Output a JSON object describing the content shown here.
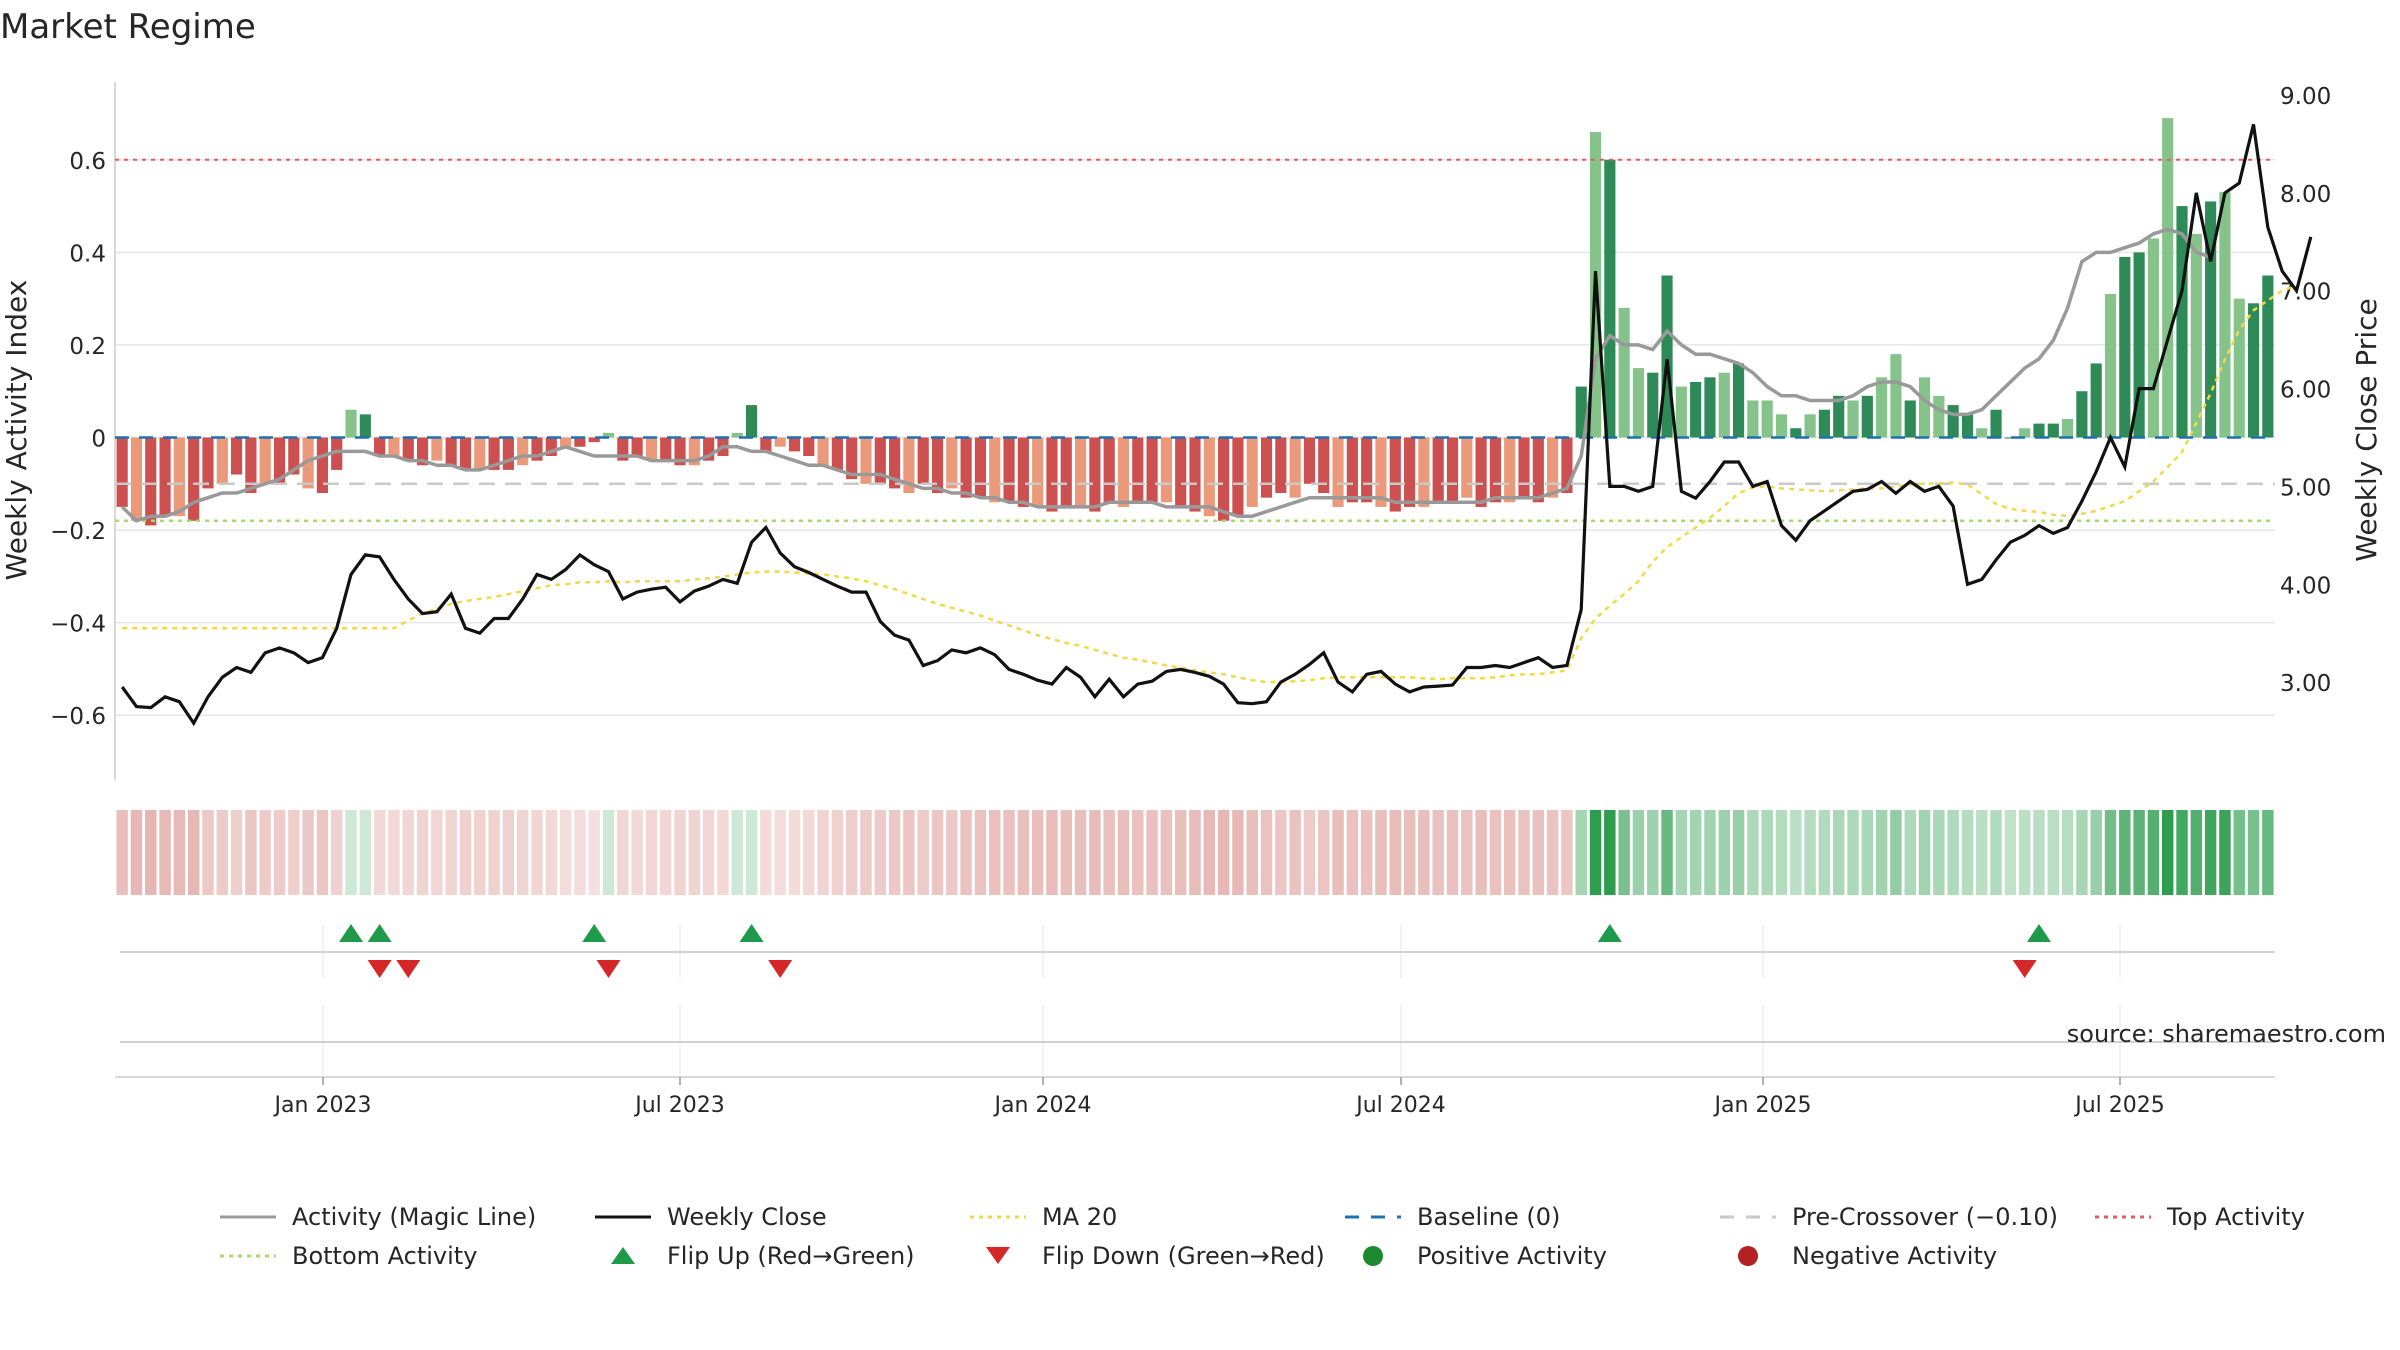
{
  "title": "Market Regime",
  "source_note": "source: sharemaestro.com",
  "colors": {
    "top_line": "#e05a6a",
    "bottom_line": "#a8dc6a",
    "baseline": "#1f6fb4",
    "precross": "#c9c9c9",
    "magic": "#999999",
    "close": "#111111",
    "ma20": "#f0d948",
    "pos_dark": "#2e8b57",
    "pos_light": "#86c38a",
    "neg_dark": "#cd5050",
    "neg_light": "#ea9a7a",
    "flip_up": "#1e9a4a",
    "flip_down": "#d62728",
    "pos_dot": "#1e8a2e",
    "neg_dot": "#b22222"
  },
  "chart_data": {
    "type": "bar",
    "title": "Market Regime",
    "x_ticks": [
      "Jan 2023",
      "Jul 2023",
      "Jan 2024",
      "Jul 2024",
      "Jan 2025",
      "Jul 2025"
    ],
    "y_left": {
      "label": "Weekly Activity Index",
      "ticks": [
        "−0.6",
        "−0.4",
        "−0.2",
        "0",
        "0.2",
        "0.4",
        "0.6"
      ],
      "range": [
        -0.74,
        0.74
      ]
    },
    "y_right": {
      "label": "Weekly Close Price",
      "ticks": [
        "3.00",
        "4.00",
        "5.00",
        "6.00",
        "7.00",
        "8.00",
        "9.00"
      ],
      "range": [
        2.0,
        9.0
      ]
    },
    "reference_lines": {
      "top_activity": 0.6,
      "bottom_activity": -0.18,
      "baseline": 0,
      "pre_crossover": -0.1
    },
    "series": [
      {
        "name": "Activity (Magic Line)",
        "values": [
          -0.15,
          -0.18,
          -0.17,
          -0.17,
          -0.16,
          -0.14,
          -0.13,
          -0.12,
          -0.12,
          -0.11,
          -0.1,
          -0.09,
          -0.07,
          -0.05,
          -0.04,
          -0.03,
          -0.03,
          -0.03,
          -0.04,
          -0.04,
          -0.05,
          -0.05,
          -0.06,
          -0.06,
          -0.07,
          -0.07,
          -0.06,
          -0.05,
          -0.04,
          -0.04,
          -0.03,
          -0.02,
          -0.03,
          -0.04,
          -0.04,
          -0.04,
          -0.04,
          -0.05,
          -0.05,
          -0.05,
          -0.05,
          -0.04,
          -0.02,
          -0.02,
          -0.03,
          -0.03,
          -0.04,
          -0.05,
          -0.06,
          -0.06,
          -0.07,
          -0.08,
          -0.08,
          -0.08,
          -0.09,
          -0.1,
          -0.11,
          -0.11,
          -0.12,
          -0.12,
          -0.13,
          -0.13,
          -0.14,
          -0.14,
          -0.15,
          -0.15,
          -0.15,
          -0.15,
          -0.15,
          -0.14,
          -0.14,
          -0.14,
          -0.14,
          -0.15,
          -0.15,
          -0.15,
          -0.15,
          -0.16,
          -0.17,
          -0.17,
          -0.16,
          -0.15,
          -0.14,
          -0.13,
          -0.13,
          -0.13,
          -0.13,
          -0.13,
          -0.13,
          -0.14,
          -0.14,
          -0.14,
          -0.14,
          -0.14,
          -0.14,
          -0.14,
          -0.13,
          -0.13,
          -0.13,
          -0.13,
          -0.12,
          -0.11,
          -0.04,
          0.17,
          0.22,
          0.2,
          0.2,
          0.19,
          0.23,
          0.2,
          0.18,
          0.18,
          0.17,
          0.16,
          0.14,
          0.11,
          0.09,
          0.09,
          0.08,
          0.08,
          0.08,
          0.09,
          0.11,
          0.12,
          0.12,
          0.11,
          0.08,
          0.06,
          0.05,
          0.05,
          0.06,
          0.09,
          0.12,
          0.15,
          0.17,
          0.21,
          0.28,
          0.38,
          0.4,
          0.4,
          0.41,
          0.42,
          0.44,
          0.45,
          0.44,
          0.4,
          0.39
        ]
      },
      {
        "name": "Weekly Close",
        "values": [
          2.95,
          2.75,
          2.74,
          2.85,
          2.8,
          2.58,
          2.85,
          3.05,
          3.15,
          3.1,
          3.3,
          3.35,
          3.3,
          3.2,
          3.25,
          3.55,
          4.1,
          4.3,
          4.28,
          4.05,
          3.85,
          3.7,
          3.72,
          3.9,
          3.55,
          3.5,
          3.65,
          3.65,
          3.85,
          4.1,
          4.05,
          4.15,
          4.3,
          4.2,
          4.13,
          3.85,
          3.92,
          3.95,
          3.97,
          3.82,
          3.93,
          3.98,
          4.05,
          4.01,
          4.43,
          4.58,
          4.32,
          4.18,
          4.12,
          4.05,
          3.98,
          3.92,
          3.92,
          3.62,
          3.48,
          3.43,
          3.17,
          3.22,
          3.33,
          3.3,
          3.35,
          3.28,
          3.13,
          3.08,
          3.02,
          2.98,
          3.15,
          3.05,
          2.85,
          3.03,
          2.85,
          2.98,
          3.01,
          3.11,
          3.13,
          3.1,
          3.06,
          2.98,
          2.79,
          2.78,
          2.8,
          3.0,
          3.08,
          3.18,
          3.3,
          3.0,
          2.9,
          3.08,
          3.11,
          2.98,
          2.9,
          2.95,
          2.96,
          2.97,
          3.15,
          3.15,
          3.17,
          3.15,
          3.2,
          3.25,
          3.15,
          3.17,
          3.74,
          7.2,
          5.0,
          5.0,
          4.95,
          5.0,
          6.3,
          4.95,
          4.88,
          5.05,
          5.25,
          5.25,
          5.0,
          5.05,
          4.6,
          4.45,
          4.65,
          4.75,
          4.85,
          4.95,
          4.97,
          5.05,
          4.93,
          5.05,
          4.95,
          5.0,
          4.8,
          4.0,
          4.05,
          4.25,
          4.43,
          4.5,
          4.6,
          4.52,
          4.58,
          4.85,
          5.15,
          5.5,
          5.2,
          6.0,
          6.0,
          6.5,
          7.0,
          8.0,
          7.3,
          8.0,
          8.1,
          8.7,
          7.65,
          7.2,
          7.0,
          7.55
        ]
      },
      {
        "name": "MA 20",
        "values": [
          3.55,
          3.55,
          3.55,
          3.55,
          3.55,
          3.55,
          3.55,
          3.55,
          3.55,
          3.55,
          3.55,
          3.55,
          3.55,
          3.55,
          3.55,
          3.55,
          3.55,
          3.55,
          3.55,
          3.55,
          3.63,
          3.7,
          3.75,
          3.8,
          3.83,
          3.85,
          3.87,
          3.9,
          3.93,
          3.96,
          3.99,
          4.0,
          4.02,
          4.02,
          4.03,
          4.02,
          4.03,
          4.03,
          4.03,
          4.03,
          4.05,
          4.06,
          4.08,
          4.1,
          4.12,
          4.13,
          4.13,
          4.12,
          4.11,
          4.1,
          4.08,
          4.06,
          4.03,
          3.99,
          3.95,
          3.9,
          3.85,
          3.8,
          3.76,
          3.72,
          3.68,
          3.63,
          3.58,
          3.53,
          3.48,
          3.44,
          3.4,
          3.37,
          3.33,
          3.29,
          3.25,
          3.23,
          3.2,
          3.17,
          3.15,
          3.12,
          3.1,
          3.08,
          3.05,
          3.02,
          3.0,
          3.0,
          3.01,
          3.02,
          3.04,
          3.05,
          3.05,
          3.05,
          3.05,
          3.05,
          3.05,
          3.04,
          3.03,
          3.04,
          3.04,
          3.04,
          3.05,
          3.07,
          3.08,
          3.08,
          3.1,
          3.12,
          3.45,
          3.65,
          3.78,
          3.9,
          4.03,
          4.23,
          4.38,
          4.48,
          4.58,
          4.68,
          4.8,
          4.93,
          4.99,
          5.0,
          4.98,
          4.97,
          4.96,
          4.95,
          4.96,
          4.97,
          4.98,
          4.98,
          5.0,
          5.02,
          5.03,
          5.03,
          5.04,
          5.02,
          4.92,
          4.82,
          4.77,
          4.75,
          4.74,
          4.71,
          4.7,
          4.72,
          4.75,
          4.8,
          4.85,
          4.95,
          5.05,
          5.2,
          5.35,
          5.65,
          5.95,
          6.3,
          6.6,
          6.8,
          6.9,
          7.0,
          7.05
        ]
      },
      {
        "name": "Activity Bars",
        "values": [
          -0.15,
          -0.18,
          -0.19,
          -0.17,
          -0.17,
          -0.18,
          -0.11,
          -0.1,
          -0.08,
          -0.12,
          -0.1,
          -0.1,
          -0.08,
          -0.11,
          -0.12,
          -0.07,
          0.06,
          0.05,
          -0.04,
          -0.04,
          -0.05,
          -0.06,
          -0.05,
          -0.06,
          -0.07,
          -0.07,
          -0.07,
          -0.07,
          -0.06,
          -0.05,
          -0.04,
          -0.02,
          -0.02,
          -0.01,
          0.01,
          -0.05,
          -0.04,
          -0.05,
          -0.05,
          -0.06,
          -0.06,
          -0.05,
          -0.04,
          0.01,
          0.07,
          -0.03,
          -0.02,
          -0.03,
          -0.04,
          -0.06,
          -0.07,
          -0.09,
          -0.1,
          -0.1,
          -0.11,
          -0.12,
          -0.1,
          -0.12,
          -0.11,
          -0.13,
          -0.13,
          -0.14,
          -0.14,
          -0.15,
          -0.15,
          -0.16,
          -0.15,
          -0.15,
          -0.16,
          -0.14,
          -0.15,
          -0.14,
          -0.14,
          -0.14,
          -0.15,
          -0.16,
          -0.17,
          -0.18,
          -0.17,
          -0.15,
          -0.13,
          -0.12,
          -0.13,
          -0.1,
          -0.12,
          -0.15,
          -0.14,
          -0.14,
          -0.15,
          -0.16,
          -0.15,
          -0.15,
          -0.14,
          -0.14,
          -0.13,
          -0.15,
          -0.14,
          -0.14,
          -0.13,
          -0.14,
          -0.13,
          -0.12,
          0.11,
          0.66,
          0.6,
          0.28,
          0.15,
          0.14,
          0.35,
          0.11,
          0.12,
          0.13,
          0.14,
          0.16,
          0.08,
          0.08,
          0.05,
          0.02,
          0.05,
          0.06,
          0.09,
          0.08,
          0.09,
          0.13,
          0.18,
          0.08,
          0.13,
          0.09,
          0.07,
          0.05,
          0.02,
          0.06,
          0.0,
          0.02,
          0.03,
          0.03,
          0.04,
          0.1,
          0.16,
          0.31,
          0.39,
          0.4,
          0.43,
          0.69,
          0.5,
          0.44,
          0.51,
          0.53,
          0.3,
          0.29,
          0.35
        ]
      }
    ],
    "activity_strip": "weekly activity heat strip (green = positive, red = negative)",
    "flip_up_weeks": [
      16,
      18,
      33,
      44,
      104,
      134
    ],
    "flip_down_weeks": [
      18,
      20,
      34,
      46,
      133
    ],
    "legend": [
      {
        "label": "Activity (Magic Line)",
        "icon": "line-solid-gray"
      },
      {
        "label": "Weekly Close",
        "icon": "line-solid-black"
      },
      {
        "label": "MA 20",
        "icon": "line-dotted-yellow"
      },
      {
        "label": "Baseline (0)",
        "icon": "line-dashed-blue"
      },
      {
        "label": "Pre-Crossover (−0.10)",
        "icon": "line-dashed-gray"
      },
      {
        "label": "Top Activity",
        "icon": "line-dotted-red"
      },
      {
        "label": "Bottom Activity",
        "icon": "line-dotted-green"
      },
      {
        "label": "Flip Up (Red→Green)",
        "icon": "triangle-up-green"
      },
      {
        "label": "Flip Down (Green→Red)",
        "icon": "triangle-down-red"
      },
      {
        "label": "Positive Activity",
        "icon": "circle-green"
      },
      {
        "label": "Negative Activity",
        "icon": "circle-red"
      }
    ],
    "legend_position": "bottom"
  }
}
